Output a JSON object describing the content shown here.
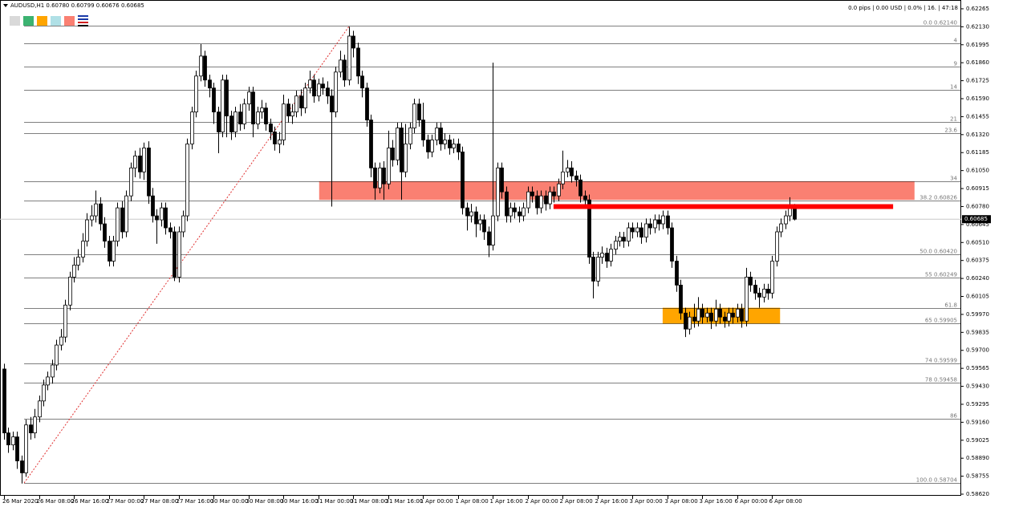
{
  "chart_data": {
    "type": "candlestick",
    "header": "AUDUSD,H1  0.60780 0.60799 0.60676 0.60685",
    "info": "0.0 pips | 0.00 USD | 0.0% | 16. | 47:18",
    "colors": {
      "up": "#ffffff",
      "down": "#000000",
      "wick": "#000000",
      "grid": "#000000"
    },
    "open": [
      0.5956,
      0.5908,
      0.5899,
      0.5905,
      0.5887,
      0.5878,
      0.5914,
      0.5908,
      0.592,
      0.5932,
      0.5944,
      0.595,
      0.5959,
      0.5974,
      0.598,
      0.6004,
      0.6025,
      0.6034,
      0.604,
      0.6052,
      0.6068,
      0.6071,
      0.608,
      0.6065,
      0.6052,
      0.6037,
      0.6052,
      0.6077,
      0.6059,
      0.6086,
      0.6107,
      0.6116,
      0.6104,
      0.6122,
      0.6086,
      0.6071,
      0.6068,
      0.6077,
      0.6062,
      0.6059,
      0.6025,
      0.6059,
      0.6071,
      0.6125,
      0.6149,
      0.6176,
      0.6191,
      0.6173,
      0.6167,
      0.6149,
      0.6134,
      0.6173,
      0.6146,
      0.6134,
      0.6149,
      0.614,
      0.6155,
      0.6164,
      0.614,
      0.6149,
      0.6152,
      0.614,
      0.6134,
      0.6125,
      0.6128,
      0.6155,
      0.6146,
      0.6149,
      0.6161,
      0.6152,
      0.6167,
      0.6173,
      0.6161,
      0.617,
      0.6167,
      0.6161,
      0.6149,
      0.6179,
      0.6188,
      0.6173,
      0.6206,
      0.6197,
      0.6176,
      0.6167,
      0.6143,
      0.6107,
      0.6092,
      0.6107,
      0.6095,
      0.6122,
      0.6113,
      0.6137,
      0.6104,
      0.6125,
      0.6137,
      0.6155,
      0.6143,
      0.6128,
      0.6119,
      0.6128,
      0.6137,
      0.6125,
      0.6128,
      0.6122,
      0.6125,
      0.6119,
      0.6077,
      0.6071,
      0.6074,
      0.6065,
      0.6068,
      0.6059,
      0.6049,
      0.6071,
      0.6107,
      0.6089,
      0.6071,
      0.6077,
      0.6074,
      0.6071,
      0.6077,
      0.6089,
      0.6086,
      0.6077,
      0.6086,
      0.608,
      0.6089,
      0.6086,
      0.6095,
      0.6104,
      0.6107,
      0.6101,
      0.6098,
      0.6086,
      0.6083,
      0.604,
      0.6022,
      0.604,
      0.6043,
      0.6037,
      0.6046,
      0.6052,
      0.6055,
      0.6052,
      0.6062,
      0.6059,
      0.6062,
      0.6055,
      0.6065,
      0.6062,
      0.6068,
      0.6065,
      0.6071,
      0.6062,
      0.6037,
      0.6019,
      0.5998,
      0.5986,
      0.5995,
      0.5992,
      0.6001,
      0.5995,
      0.5998,
      0.5992,
      0.6001,
      0.5995,
      0.5992,
      0.5998,
      0.5995,
      0.6001,
      0.5992,
      0.6025,
      0.6019,
      0.6013,
      0.601,
      0.6016,
      0.6013,
      0.6037,
      0.6059,
      0.6065,
      0.6071,
      0.6078
    ],
    "high": [
      0.596,
      0.5912,
      0.5909,
      0.5909,
      0.5891,
      0.5918,
      0.592,
      0.5926,
      0.5936,
      0.5948,
      0.5954,
      0.5963,
      0.5978,
      0.5986,
      0.6008,
      0.6029,
      0.604,
      0.6046,
      0.6058,
      0.6073,
      0.6079,
      0.609,
      0.6085,
      0.607,
      0.6056,
      0.6056,
      0.6081,
      0.6082,
      0.609,
      0.6111,
      0.612,
      0.6122,
      0.6126,
      0.6127,
      0.6092,
      0.6076,
      0.6081,
      0.6081,
      0.6066,
      0.6063,
      0.6063,
      0.6075,
      0.6129,
      0.6153,
      0.618,
      0.62,
      0.6195,
      0.6177,
      0.6171,
      0.6153,
      0.6177,
      0.6177,
      0.615,
      0.6153,
      0.6155,
      0.6159,
      0.6168,
      0.6168,
      0.6153,
      0.6158,
      0.6156,
      0.6144,
      0.6138,
      0.6134,
      0.6162,
      0.6159,
      0.6155,
      0.6165,
      0.6166,
      0.6171,
      0.618,
      0.6177,
      0.6174,
      0.6175,
      0.6172,
      0.6166,
      0.6183,
      0.6195,
      0.6192,
      0.6213,
      0.621,
      0.6201,
      0.618,
      0.6171,
      0.6147,
      0.6111,
      0.6111,
      0.6112,
      0.6135,
      0.6128,
      0.6141,
      0.6141,
      0.614,
      0.6141,
      0.6159,
      0.6159,
      0.6156,
      0.6132,
      0.6132,
      0.6141,
      0.6141,
      0.6133,
      0.6132,
      0.6129,
      0.6129,
      0.6123,
      0.6081,
      0.608,
      0.6078,
      0.6072,
      0.6072,
      0.6063,
      0.6186,
      0.6111,
      0.6111,
      0.6093,
      0.6081,
      0.6081,
      0.6078,
      0.6081,
      0.6093,
      0.6093,
      0.609,
      0.609,
      0.609,
      0.6093,
      0.6093,
      0.6099,
      0.612,
      0.6113,
      0.6112,
      0.6105,
      0.6102,
      0.609,
      0.6087,
      0.6044,
      0.6044,
      0.6048,
      0.6047,
      0.605,
      0.6056,
      0.6059,
      0.6059,
      0.6066,
      0.6066,
      0.6066,
      0.6066,
      0.6069,
      0.6069,
      0.6072,
      0.6072,
      0.6075,
      0.6075,
      0.6066,
      0.6041,
      0.6023,
      0.6002,
      0.5999,
      0.6005,
      0.601,
      0.6005,
      0.6002,
      0.6002,
      0.6008,
      0.6005,
      0.5999,
      0.6002,
      0.6002,
      0.6005,
      0.6005,
      0.6032,
      0.6029,
      0.6023,
      0.6017,
      0.602,
      0.602,
      0.6041,
      0.6063,
      0.6069,
      0.6075,
      0.6085,
      0.60799
    ],
    "low": [
      0.5903,
      0.5893,
      0.5895,
      0.5881,
      0.587,
      0.5875,
      0.5903,
      0.5904,
      0.5916,
      0.5928,
      0.594,
      0.5945,
      0.5955,
      0.597,
      0.5976,
      0.6,
      0.6021,
      0.603,
      0.6036,
      0.6048,
      0.6063,
      0.6066,
      0.606,
      0.6047,
      0.6033,
      0.6033,
      0.6048,
      0.6054,
      0.6055,
      0.6082,
      0.61,
      0.6099,
      0.6098,
      0.608,
      0.6066,
      0.605,
      0.6063,
      0.6057,
      0.6054,
      0.6022,
      0.6021,
      0.6055,
      0.6067,
      0.6121,
      0.6145,
      0.6172,
      0.6168,
      0.616,
      0.614,
      0.6118,
      0.613,
      0.613,
      0.6128,
      0.613,
      0.6135,
      0.6136,
      0.615,
      0.613,
      0.6136,
      0.6144,
      0.6135,
      0.6128,
      0.612,
      0.6118,
      0.6124,
      0.6141,
      0.614,
      0.6145,
      0.6146,
      0.6148,
      0.6163,
      0.6156,
      0.6157,
      0.6162,
      0.6155,
      0.6078,
      0.6145,
      0.6175,
      0.6168,
      0.6169,
      0.619,
      0.617,
      0.616,
      0.6138,
      0.61,
      0.6083,
      0.6088,
      0.6083,
      0.6091,
      0.6108,
      0.6109,
      0.6083,
      0.61,
      0.6121,
      0.6133,
      0.6138,
      0.6123,
      0.6114,
      0.6115,
      0.6124,
      0.612,
      0.6121,
      0.6117,
      0.6118,
      0.6113,
      0.6072,
      0.606,
      0.6066,
      0.6055,
      0.606,
      0.6053,
      0.604,
      0.6045,
      0.6067,
      0.6084,
      0.6066,
      0.6066,
      0.6069,
      0.6066,
      0.6067,
      0.6073,
      0.6081,
      0.6072,
      0.6073,
      0.6075,
      0.6076,
      0.6081,
      0.6082,
      0.6091,
      0.61,
      0.6096,
      0.6093,
      0.6081,
      0.6078,
      0.6035,
      0.6009,
      0.6018,
      0.6035,
      0.6032,
      0.6033,
      0.6042,
      0.6048,
      0.6047,
      0.6048,
      0.6054,
      0.6055,
      0.605,
      0.6051,
      0.6057,
      0.6058,
      0.606,
      0.6061,
      0.6057,
      0.6032,
      0.6014,
      0.5993,
      0.598,
      0.5982,
      0.5987,
      0.5988,
      0.599,
      0.5991,
      0.5986,
      0.5988,
      0.599,
      0.5987,
      0.5988,
      0.599,
      0.5991,
      0.5987,
      0.5988,
      0.6014,
      0.6008,
      0.6002,
      0.6006,
      0.6008,
      0.6009,
      0.6033,
      0.6055,
      0.6061,
      0.6067,
      0.60676
    ],
    "close": [
      0.5908,
      0.5899,
      0.5905,
      0.5887,
      0.5878,
      0.5914,
      0.5908,
      0.592,
      0.5932,
      0.5944,
      0.595,
      0.5959,
      0.5974,
      0.598,
      0.6004,
      0.6025,
      0.6034,
      0.604,
      0.6052,
      0.6068,
      0.6071,
      0.608,
      0.6065,
      0.6052,
      0.6037,
      0.6052,
      0.6077,
      0.6059,
      0.6086,
      0.6107,
      0.6116,
      0.6104,
      0.6122,
      0.6086,
      0.6071,
      0.6068,
      0.6077,
      0.6062,
      0.6059,
      0.6025,
      0.6059,
      0.6071,
      0.6125,
      0.6149,
      0.6176,
      0.6191,
      0.6173,
      0.6167,
      0.6149,
      0.6134,
      0.6173,
      0.6146,
      0.6134,
      0.6149,
      0.614,
      0.6155,
      0.6164,
      0.614,
      0.6149,
      0.6152,
      0.614,
      0.6134,
      0.6125,
      0.6128,
      0.6155,
      0.6146,
      0.6149,
      0.6161,
      0.6152,
      0.6167,
      0.6173,
      0.6161,
      0.617,
      0.6167,
      0.6161,
      0.6149,
      0.6179,
      0.6188,
      0.6173,
      0.6206,
      0.6197,
      0.6176,
      0.6167,
      0.6143,
      0.6107,
      0.6092,
      0.6107,
      0.6095,
      0.6122,
      0.6113,
      0.6137,
      0.6104,
      0.6125,
      0.6137,
      0.6155,
      0.6143,
      0.6128,
      0.6119,
      0.6128,
      0.6137,
      0.6125,
      0.6128,
      0.6122,
      0.6125,
      0.6119,
      0.6077,
      0.6071,
      0.6074,
      0.6065,
      0.6068,
      0.6059,
      0.6049,
      0.6071,
      0.6107,
      0.6089,
      0.6071,
      0.6077,
      0.6074,
      0.6071,
      0.6077,
      0.6089,
      0.6086,
      0.6077,
      0.6086,
      0.608,
      0.6089,
      0.6086,
      0.6095,
      0.6104,
      0.6107,
      0.6101,
      0.6098,
      0.6086,
      0.6083,
      0.604,
      0.6022,
      0.604,
      0.6043,
      0.6037,
      0.6046,
      0.6052,
      0.6055,
      0.6052,
      0.6062,
      0.6059,
      0.6062,
      0.6055,
      0.6065,
      0.6062,
      0.6068,
      0.6065,
      0.6071,
      0.6062,
      0.6037,
      0.6019,
      0.5998,
      0.5986,
      0.5995,
      0.5992,
      0.6001,
      0.5995,
      0.5998,
      0.5992,
      0.6001,
      0.5995,
      0.5992,
      0.5998,
      0.5995,
      0.6001,
      0.5992,
      0.6025,
      0.6019,
      0.6013,
      0.601,
      0.6016,
      0.6013,
      0.6037,
      0.6059,
      0.6065,
      0.6071,
      0.6078,
      0.60685
    ],
    "last_price": 0.60685,
    "xlim": [
      -0.92,
      219.3
    ],
    "ylim": [
      0.58608,
      0.62331
    ],
    "yticks": [
      0.62265,
      {
        "value": 0.6213,
        "label": "0.62130"
      },
      0.61995,
      {
        "value": 0.6186,
        "label": "0.61860"
      },
      0.61725,
      {
        "value": 0.6159,
        "label": "0.61590"
      },
      0.61455,
      {
        "value": 0.6132,
        "label": "0.61320"
      },
      0.61185,
      {
        "value": 0.6105,
        "label": "0.61050"
      },
      0.60915,
      {
        "value": 0.6078,
        "label": "0.60780"
      },
      0.60645,
      {
        "value": 0.6051,
        "label": "0.60510"
      },
      0.60375,
      {
        "value": 0.6024,
        "label": "0.60240"
      },
      0.60105,
      {
        "value": 0.5997,
        "label": "0.59970"
      },
      0.59835,
      {
        "value": 0.597,
        "label": "0.59700"
      },
      0.59565,
      {
        "value": 0.5943,
        "label": "0.59430"
      },
      0.59295,
      {
        "value": 0.5916,
        "label": "0.59160"
      },
      0.59025,
      {
        "value": 0.5889,
        "label": "0.58890"
      },
      0.58755,
      {
        "value": 0.5862,
        "label": "0.58620"
      }
    ],
    "xticks": [
      {
        "value": 0,
        "label": "26 Mar 2020"
      },
      {
        "value": 8,
        "label": "26 Mar 08:00"
      },
      {
        "value": 16,
        "label": "26 Mar 16:00"
      },
      {
        "value": 24,
        "label": "27 Mar 00:00"
      },
      {
        "value": 32,
        "label": "27 Mar 08:00"
      },
      {
        "value": 40,
        "label": "27 Mar 16:00"
      },
      {
        "value": 48,
        "label": "30 Mar 00:00"
      },
      {
        "value": 56,
        "label": "30 Mar 08:00"
      },
      {
        "value": 64,
        "label": "30 Mar 16:00"
      },
      {
        "value": 72,
        "label": "31 Mar 00:00"
      },
      {
        "value": 80,
        "label": "31 Mar 08:00"
      },
      {
        "value": 88,
        "label": "31 Mar 16:00"
      },
      {
        "value": 96,
        "label": "1 Apr 00:00"
      },
      {
        "value": 104,
        "label": "1 Apr 08:00"
      },
      {
        "value": 112,
        "label": "1 Apr 16:00"
      },
      {
        "value": 120,
        "label": "2 Apr 00:00"
      },
      {
        "value": 128,
        "label": "2 Apr 08:00"
      },
      {
        "value": 136,
        "label": "2 Apr 16:00"
      },
      {
        "value": 144,
        "label": "3 Apr 00:00"
      },
      {
        "value": 152,
        "label": "3 Apr 08:00"
      },
      {
        "value": 160,
        "label": "3 Apr 16:00"
      },
      {
        "value": 168,
        "label": "6 Apr 00:00"
      },
      {
        "value": 176,
        "label": "6 Apr 08:00"
      }
    ],
    "fib_levels": [
      {
        "value": 0.6214,
        "label": "0.0  0.62140"
      },
      {
        "value": 0.62003,
        "label": "4"
      },
      {
        "value": 0.61831,
        "label": "9"
      },
      {
        "value": 0.61659,
        "label": "14"
      },
      {
        "value": 0.61418,
        "label": "21"
      },
      {
        "value": 0.61329,
        "label": "23.6"
      },
      {
        "value": 0.60972,
        "label": "34"
      },
      {
        "value": 0.60826,
        "label": "38.2  0.60826"
      },
      {
        "value": 0.6042,
        "label": "50.0  0.60420"
      },
      {
        "value": 0.60249,
        "label": "55  0.60249"
      },
      {
        "value": 0.60017,
        "label": "61.8"
      },
      {
        "value": 0.59905,
        "label": "65  0.59905"
      },
      {
        "value": 0.59599,
        "label": "74  0.59599"
      },
      {
        "value": 0.59458,
        "label": "78  0.59458"
      },
      {
        "value": 0.59185,
        "label": "86"
      },
      {
        "value": 0.58704,
        "label": "100.0  0.58704"
      }
    ],
    "trendline": {
      "x": [
        4.6,
        79.2
      ],
      "y": [
        0.58704,
        0.6214
      ],
      "color": "#e03030"
    },
    "zones": [
      {
        "x": [
          72.2,
          208.6
        ],
        "y": [
          0.6083,
          0.6097
        ],
        "color": "#fa8072"
      },
      {
        "x": [
          150.9,
          177.8
        ],
        "y": [
          0.599,
          0.6002
        ],
        "color": "#ffa500"
      }
    ],
    "hline": {
      "x": [
        125.9,
        203.7
      ],
      "value": 0.6078,
      "color": "#ff0000"
    }
  }
}
